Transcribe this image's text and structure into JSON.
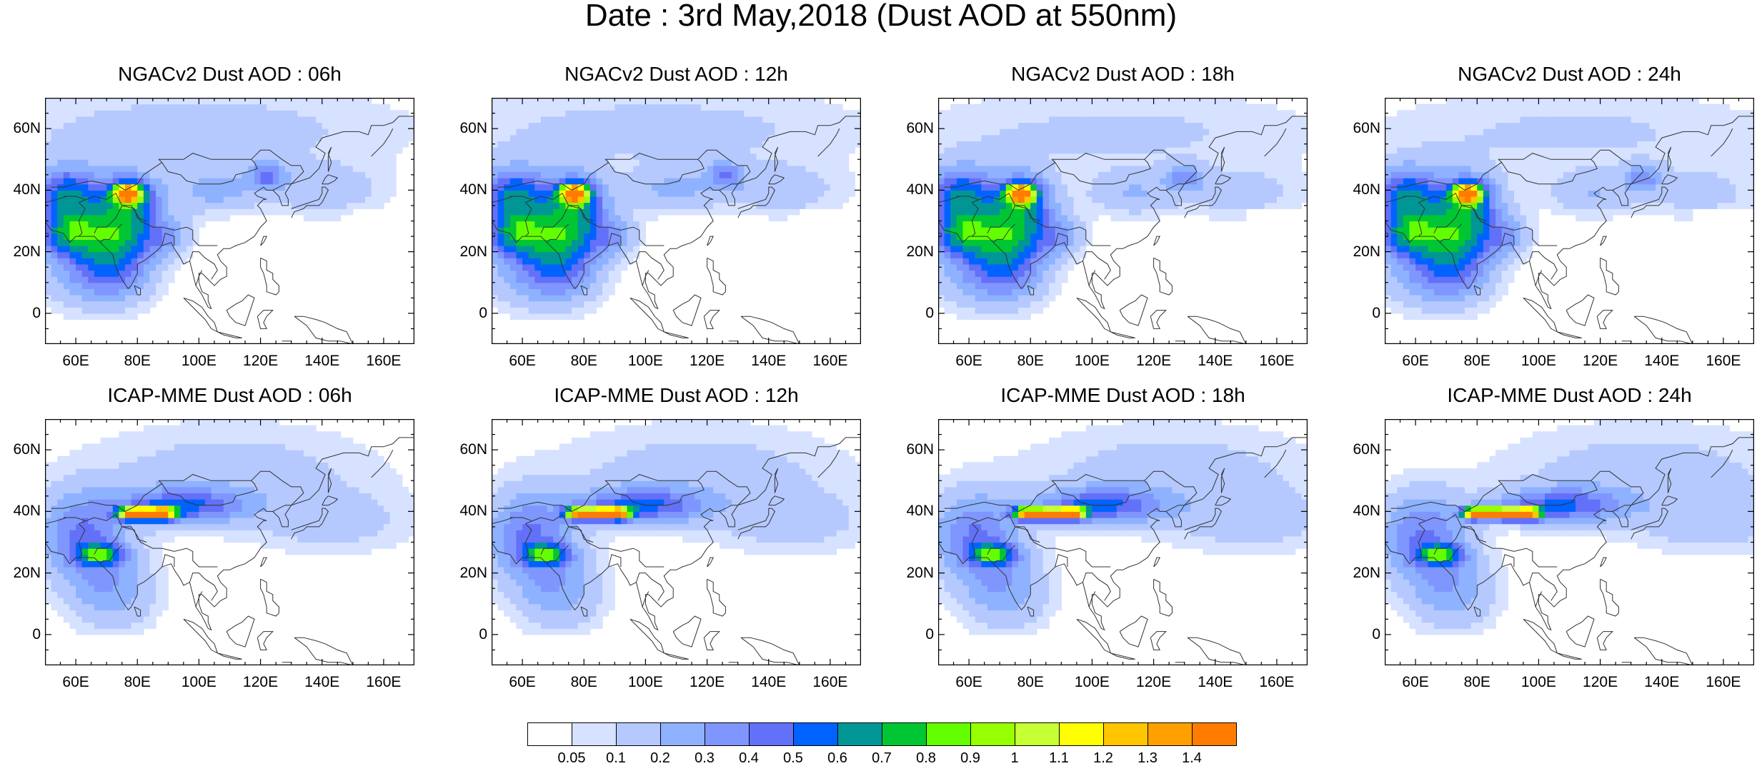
{
  "title": "Date : 3rd May,2018 (Dust AOD at 550nm)",
  "panels": [
    {
      "title": "NGACv2 Dust AOD : 06h",
      "model": "ngac",
      "hour": 6
    },
    {
      "title": "NGACv2 Dust AOD : 12h",
      "model": "ngac",
      "hour": 12
    },
    {
      "title": "NGACv2 Dust AOD : 18h",
      "model": "ngac",
      "hour": 18
    },
    {
      "title": "NGACv2 Dust AOD : 24h",
      "model": "ngac",
      "hour": 24
    },
    {
      "title": "ICAP-MME Dust AOD : 06h",
      "model": "icap",
      "hour": 6
    },
    {
      "title": "ICAP-MME Dust AOD : 12h",
      "model": "icap",
      "hour": 12
    },
    {
      "title": "ICAP-MME Dust AOD : 18h",
      "model": "icap",
      "hour": 18
    },
    {
      "title": "ICAP-MME Dust AOD : 24h",
      "model": "icap",
      "hour": 24
    }
  ],
  "axes": {
    "x_ticks": [
      "60E",
      "80E",
      "100E",
      "120E",
      "140E",
      "160E"
    ],
    "y_ticks": [
      "60N",
      "40N",
      "20N",
      "0"
    ],
    "x_values": [
      60,
      80,
      100,
      120,
      140,
      160
    ],
    "y_values": [
      60,
      40,
      20,
      0
    ],
    "lon_range": [
      50,
      170
    ],
    "lat_range": [
      -10,
      70
    ]
  },
  "colorbar": {
    "labels": [
      "0.05",
      "0.1",
      "0.2",
      "0.3",
      "0.4",
      "0.5",
      "0.6",
      "0.7",
      "0.8",
      "0.9",
      "1",
      "1.1",
      "1.2",
      "1.3",
      "1.4"
    ],
    "colors": [
      "#ffffff",
      "#d6e2ff",
      "#b5c9ff",
      "#8eb2ff",
      "#7f96ff",
      "#6370f8",
      "#0063ff",
      "#009696",
      "#00c633",
      "#63ff00",
      "#96ff00",
      "#c6ff33",
      "#ffff00",
      "#ffc600",
      "#ffa000",
      "#ff7c00",
      "#ff1900"
    ]
  }
}
